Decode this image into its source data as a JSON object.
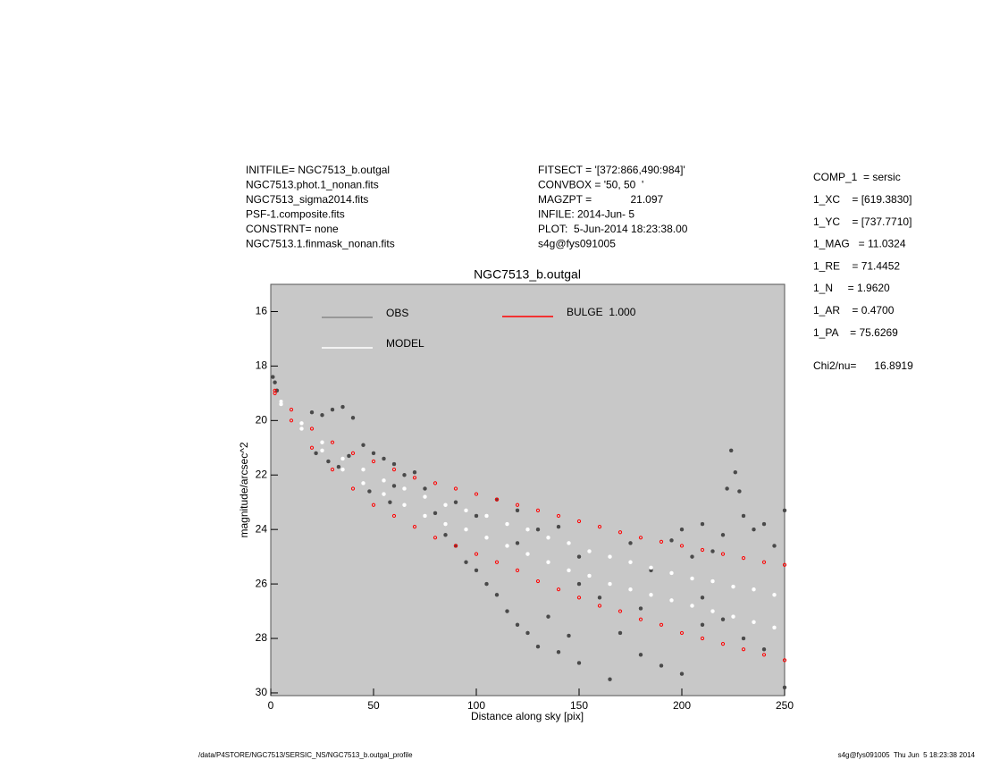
{
  "chart_data": {
    "type": "scatter",
    "title": "NGC7513_b.outgal",
    "xlabel": "Distance along sky [pix]",
    "ylabel": "magnitude/arcsec^2",
    "header_left": [
      "INITFILE= NGC7513_b.outgal",
      "NGC7513.phot.1_nonan.fits",
      "NGC7513_sigma2014.fits",
      "PSF-1.composite.fits",
      "CONSTRNT= none",
      "NGC7513.1.finmask_nonan.fits"
    ],
    "header_middle": [
      "FITSECT = '[372:866,490:984]'",
      "CONVBOX = '50, 50  '",
      "MAGZPT =             21.097",
      "INFILE: 2014-Jun- 5",
      "PLOT:  5-Jun-2014 18:23:38.00",
      "s4g@fys091005"
    ],
    "parameters": [
      "COMP_1  = sersic",
      "1_XC    = [619.3830]",
      "1_YC    = [737.7710]",
      "1_MAG   = 11.0324",
      "1_RE    = 71.4452",
      "1_N     = 1.9620",
      "1_AR    = 0.4700",
      "1_PA    = 75.6269"
    ],
    "fit_statistic": "Chi2/nu=      16.8919",
    "footer_left": "/data/P4STORE/NGC7513/SERSIC_NS/NGC7513_b.outgal_profile",
    "footer_right": "s4g@fys091005  Thu Jun  5 18:23:38 2014",
    "xlim": [
      0,
      250
    ],
    "xticks": [
      0,
      50,
      100,
      150,
      200,
      250
    ],
    "ylim": [
      15,
      30.1
    ],
    "yticks": [
      16,
      18,
      20,
      22,
      24,
      26,
      28,
      30
    ],
    "y_inverted": true,
    "background": "#c8c8c8",
    "series": [
      {
        "name": "OBS",
        "color": "#4a4a4a",
        "x": [
          1,
          2,
          3,
          5,
          20,
          25,
          30,
          35,
          40,
          22,
          28,
          33,
          38,
          45,
          50,
          55,
          60,
          48,
          58,
          65,
          70,
          75,
          80,
          85,
          90,
          95,
          100,
          105,
          110,
          115,
          120,
          125,
          130,
          135,
          140,
          145,
          150,
          100,
          110,
          120,
          130,
          140,
          150,
          160,
          170,
          180,
          190,
          200,
          165,
          175,
          185,
          195,
          200,
          205,
          210,
          215,
          220,
          222,
          224,
          226,
          228,
          230,
          235,
          240,
          245,
          250,
          210,
          220,
          230,
          240,
          250,
          60,
          90,
          120,
          150,
          180,
          210
        ],
        "values": [
          18.4,
          18.6,
          18.9,
          19.3,
          19.7,
          19.8,
          19.6,
          19.5,
          19.9,
          21.2,
          21.5,
          21.7,
          21.3,
          20.9,
          21.2,
          21.4,
          21.6,
          22.6,
          23.0,
          22.0,
          21.9,
          22.5,
          23.4,
          24.2,
          24.6,
          25.2,
          25.5,
          26.0,
          26.4,
          27.0,
          27.5,
          27.8,
          28.3,
          27.2,
          28.5,
          27.9,
          28.9,
          23.5,
          22.9,
          23.3,
          24.0,
          23.9,
          25.0,
          26.5,
          27.8,
          28.6,
          29.0,
          29.3,
          29.5,
          24.5,
          25.5,
          24.4,
          24.0,
          25.0,
          23.8,
          24.8,
          24.2,
          22.5,
          21.1,
          21.9,
          22.6,
          23.5,
          24.0,
          23.8,
          24.6,
          23.3,
          26.5,
          27.3,
          28.0,
          28.4,
          29.8,
          22.4,
          23.0,
          24.5,
          26.0,
          26.9,
          27.5
        ]
      },
      {
        "name": "MODEL",
        "color": "#ffffff",
        "x": [
          5,
          15,
          25,
          35,
          45,
          55,
          65,
          75,
          85,
          95,
          105,
          115,
          125,
          135,
          145,
          155,
          165,
          175,
          185,
          195,
          205,
          215,
          225,
          235,
          245,
          5,
          15,
          25,
          35,
          45,
          55,
          65,
          75,
          85,
          95,
          105,
          115,
          125,
          135,
          145,
          155,
          165,
          175,
          185,
          195,
          205,
          215,
          225,
          235,
          245
        ],
        "values": [
          19.3,
          20.1,
          20.8,
          21.4,
          21.8,
          22.2,
          22.5,
          22.8,
          23.1,
          23.3,
          23.5,
          23.8,
          24.0,
          24.3,
          24.5,
          24.8,
          25.0,
          25.2,
          25.4,
          25.6,
          25.8,
          25.9,
          26.1,
          26.2,
          26.4,
          19.4,
          20.3,
          21.1,
          21.8,
          22.3,
          22.7,
          23.1,
          23.5,
          23.8,
          24.0,
          24.3,
          24.6,
          24.9,
          25.2,
          25.5,
          25.7,
          26.0,
          26.2,
          26.4,
          26.6,
          26.8,
          27.0,
          27.2,
          27.4,
          27.6
        ]
      },
      {
        "name": "BULGE  1.000",
        "color": "#ff0000",
        "x": [
          2,
          10,
          20,
          30,
          40,
          50,
          60,
          70,
          80,
          90,
          100,
          110,
          120,
          130,
          140,
          150,
          160,
          170,
          180,
          190,
          200,
          210,
          220,
          230,
          240,
          250,
          2,
          10,
          20,
          30,
          40,
          50,
          60,
          70,
          80,
          90,
          100,
          110,
          120,
          130,
          140,
          150,
          160,
          170,
          180,
          190,
          200,
          210,
          220,
          230,
          240,
          250
        ],
        "values": [
          18.9,
          19.6,
          20.3,
          20.8,
          21.2,
          21.5,
          21.8,
          22.1,
          22.3,
          22.5,
          22.7,
          22.9,
          23.1,
          23.3,
          23.5,
          23.7,
          23.9,
          24.1,
          24.3,
          24.45,
          24.6,
          24.75,
          24.9,
          25.05,
          25.2,
          25.3,
          19.0,
          20.0,
          21.0,
          21.8,
          22.5,
          23.1,
          23.5,
          23.9,
          24.3,
          24.6,
          24.9,
          25.2,
          25.5,
          25.9,
          26.2,
          26.5,
          26.8,
          27.0,
          27.3,
          27.5,
          27.8,
          28.0,
          28.2,
          28.4,
          28.6,
          28.8
        ]
      }
    ]
  }
}
